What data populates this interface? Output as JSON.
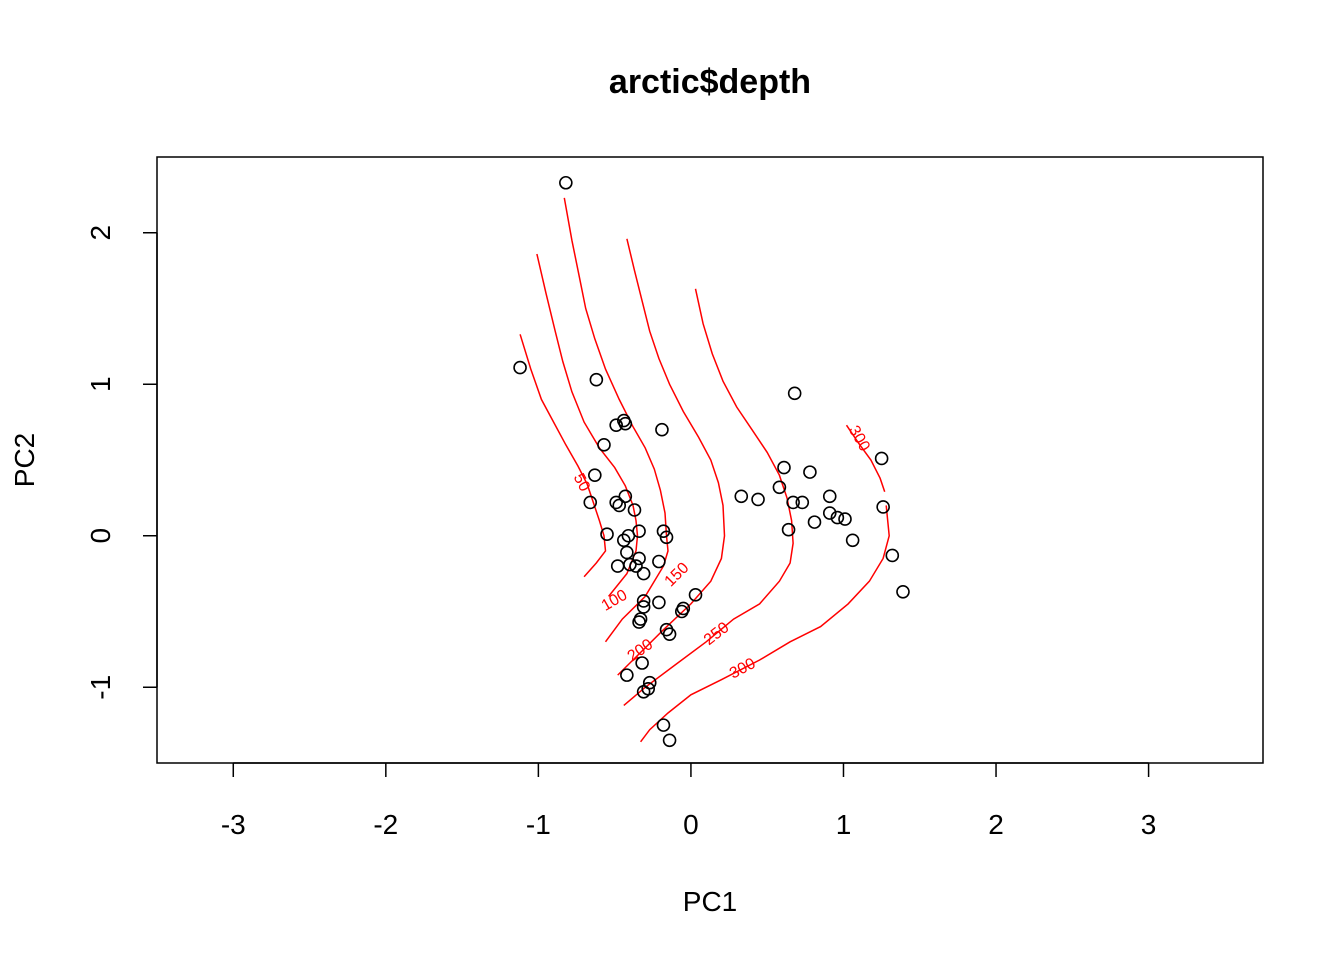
{
  "chart_data": {
    "type": "scatter",
    "title": "arctic$depth",
    "xlabel": "PC1",
    "ylabel": "PC2",
    "xlim": [
      -3.5,
      3.75
    ],
    "ylim": [
      -1.5,
      2.5
    ],
    "xticks": [
      "-3",
      "-2",
      "-1",
      "0",
      "1",
      "2",
      "3"
    ],
    "xtick_values": [
      -3,
      -2,
      -1,
      0,
      1,
      2,
      3
    ],
    "yticks": [
      "-1",
      "0",
      "1",
      "2"
    ],
    "ytick_values": [
      -1,
      0,
      1,
      2
    ],
    "point_color": "#000000",
    "contour_color": "#ff0000",
    "points": [
      [
        -0.82,
        2.33
      ],
      [
        -1.12,
        1.11
      ],
      [
        -0.62,
        1.03
      ],
      [
        -0.44,
        0.76
      ],
      [
        -0.43,
        0.74
      ],
      [
        -0.49,
        0.73
      ],
      [
        -0.19,
        0.7
      ],
      [
        -0.57,
        0.6
      ],
      [
        0.68,
        0.94
      ],
      [
        -0.63,
        0.4
      ],
      [
        -0.43,
        0.26
      ],
      [
        -0.49,
        0.22
      ],
      [
        -0.47,
        0.2
      ],
      [
        -0.66,
        0.22
      ],
      [
        -0.37,
        0.17
      ],
      [
        -0.34,
        0.03
      ],
      [
        -0.55,
        0.01
      ],
      [
        -0.41,
        0.0
      ],
      [
        -0.44,
        -0.03
      ],
      [
        -0.18,
        0.03
      ],
      [
        -0.16,
        -0.01
      ],
      [
        -0.42,
        -0.11
      ],
      [
        -0.34,
        -0.15
      ],
      [
        -0.4,
        -0.19
      ],
      [
        -0.36,
        -0.2
      ],
      [
        -0.48,
        -0.2
      ],
      [
        -0.21,
        -0.17
      ],
      [
        -0.31,
        -0.25
      ],
      [
        -0.31,
        -0.43
      ],
      [
        -0.21,
        -0.44
      ],
      [
        -0.31,
        -0.47
      ],
      [
        -0.05,
        -0.48
      ],
      [
        -0.06,
        -0.5
      ],
      [
        0.03,
        -0.39
      ],
      [
        -0.33,
        -0.55
      ],
      [
        -0.34,
        -0.57
      ],
      [
        -0.16,
        -0.62
      ],
      [
        -0.14,
        -0.65
      ],
      [
        -0.32,
        -0.84
      ],
      [
        -0.42,
        -0.92
      ],
      [
        -0.27,
        -0.97
      ],
      [
        -0.28,
        -1.01
      ],
      [
        -0.31,
        -1.03
      ],
      [
        -0.18,
        -1.25
      ],
      [
        -0.14,
        -1.35
      ],
      [
        0.33,
        0.26
      ],
      [
        0.44,
        0.24
      ],
      [
        0.58,
        0.32
      ],
      [
        0.61,
        0.45
      ],
      [
        0.67,
        0.22
      ],
      [
        0.73,
        0.22
      ],
      [
        0.78,
        0.42
      ],
      [
        0.64,
        0.04
      ],
      [
        0.81,
        0.09
      ],
      [
        0.91,
        0.26
      ],
      [
        0.91,
        0.15
      ],
      [
        0.96,
        0.12
      ],
      [
        1.01,
        0.11
      ],
      [
        1.06,
        -0.03
      ],
      [
        1.25,
        0.51
      ],
      [
        1.26,
        0.19
      ],
      [
        1.32,
        -0.13
      ],
      [
        1.39,
        -0.37
      ]
    ],
    "contours": [
      {
        "level": "50",
        "label_at": [
          -0.72,
          0.35
        ],
        "label_angle": 62,
        "path": [
          [
            -1.12,
            1.33
          ],
          [
            -1.05,
            1.1
          ],
          [
            -0.98,
            0.9
          ],
          [
            -0.9,
            0.75
          ],
          [
            -0.82,
            0.6
          ],
          [
            -0.74,
            0.46
          ],
          [
            -0.68,
            0.34
          ],
          [
            -0.64,
            0.22
          ],
          [
            -0.6,
            0.1
          ],
          [
            -0.57,
            0.0
          ],
          [
            -0.56,
            -0.1
          ],
          [
            -0.62,
            -0.18
          ],
          [
            -0.7,
            -0.27
          ]
        ]
      },
      {
        "level": "100",
        "label_at": [
          -0.5,
          -0.43
        ],
        "label_angle": -30,
        "path": [
          [
            -1.01,
            1.86
          ],
          [
            -0.95,
            1.6
          ],
          [
            -0.89,
            1.35
          ],
          [
            -0.84,
            1.15
          ],
          [
            -0.78,
            0.95
          ],
          [
            -0.7,
            0.75
          ],
          [
            -0.6,
            0.58
          ],
          [
            -0.5,
            0.45
          ],
          [
            -0.43,
            0.33
          ],
          [
            -0.38,
            0.2
          ],
          [
            -0.36,
            0.1
          ],
          [
            -0.35,
            0.0
          ],
          [
            -0.36,
            -0.1
          ],
          [
            -0.42,
            -0.25
          ],
          [
            -0.54,
            -0.4
          ]
        ]
      },
      {
        "level": "150",
        "label_at": [
          -0.09,
          -0.26
        ],
        "label_angle": -45,
        "path": [
          [
            -0.83,
            2.23
          ],
          [
            -0.78,
            1.95
          ],
          [
            -0.73,
            1.7
          ],
          [
            -0.69,
            1.5
          ],
          [
            -0.63,
            1.3
          ],
          [
            -0.56,
            1.1
          ],
          [
            -0.47,
            0.9
          ],
          [
            -0.38,
            0.72
          ],
          [
            -0.3,
            0.58
          ],
          [
            -0.24,
            0.44
          ],
          [
            -0.2,
            0.3
          ],
          [
            -0.17,
            0.15
          ],
          [
            -0.16,
            0.0
          ],
          [
            -0.15,
            -0.1
          ],
          [
            -0.18,
            -0.2
          ],
          [
            -0.3,
            -0.4
          ],
          [
            -0.45,
            -0.55
          ],
          [
            -0.56,
            -0.7
          ]
        ]
      },
      {
        "level": "200",
        "label_at": [
          -0.33,
          -0.76
        ],
        "label_angle": -35,
        "path": [
          [
            -0.42,
            1.96
          ],
          [
            -0.37,
            1.75
          ],
          [
            -0.32,
            1.55
          ],
          [
            -0.27,
            1.35
          ],
          [
            -0.21,
            1.17
          ],
          [
            -0.14,
            1.0
          ],
          [
            -0.05,
            0.82
          ],
          [
            0.05,
            0.65
          ],
          [
            0.13,
            0.5
          ],
          [
            0.18,
            0.35
          ],
          [
            0.21,
            0.2
          ],
          [
            0.22,
            0.0
          ],
          [
            0.2,
            -0.15
          ],
          [
            0.13,
            -0.3
          ],
          [
            0.0,
            -0.45
          ],
          [
            -0.18,
            -0.62
          ],
          [
            -0.36,
            -0.8
          ],
          [
            -0.48,
            -0.92
          ]
        ]
      },
      {
        "level": "250",
        "label_at": [
          0.17,
          -0.65
        ],
        "label_angle": -38,
        "path": [
          [
            0.03,
            1.63
          ],
          [
            0.08,
            1.4
          ],
          [
            0.14,
            1.2
          ],
          [
            0.21,
            1.02
          ],
          [
            0.3,
            0.85
          ],
          [
            0.4,
            0.7
          ],
          [
            0.5,
            0.55
          ],
          [
            0.58,
            0.4
          ],
          [
            0.63,
            0.25
          ],
          [
            0.66,
            0.1
          ],
          [
            0.67,
            -0.05
          ],
          [
            0.65,
            -0.18
          ],
          [
            0.58,
            -0.3
          ],
          [
            0.45,
            -0.45
          ],
          [
            0.28,
            -0.55
          ],
          [
            0.1,
            -0.7
          ],
          [
            -0.1,
            -0.85
          ],
          [
            -0.3,
            -1.0
          ],
          [
            -0.44,
            -1.12
          ]
        ]
      },
      {
        "level": "300",
        "label_at": [
          0.34,
          -0.88
        ],
        "label_angle": -28,
        "path": [
          [
            1.27,
            0.29
          ],
          [
            1.24,
            0.38
          ],
          [
            1.18,
            0.5
          ],
          [
            1.1,
            0.61
          ],
          [
            1.02,
            0.73
          ]
        ]
      },
      {
        "level": "300",
        "label_at": [
          1.1,
          0.64
        ],
        "label_angle": 60,
        "path": [
          [
            1.28,
            0.2
          ],
          [
            1.3,
            0.0
          ],
          [
            1.26,
            -0.15
          ],
          [
            1.17,
            -0.3
          ],
          [
            1.03,
            -0.45
          ],
          [
            0.85,
            -0.6
          ],
          [
            0.65,
            -0.7
          ],
          [
            0.45,
            -0.82
          ],
          [
            0.2,
            -0.95
          ],
          [
            0.0,
            -1.05
          ],
          [
            -0.15,
            -1.17
          ],
          [
            -0.27,
            -1.28
          ],
          [
            -0.33,
            -1.36
          ]
        ]
      }
    ]
  }
}
